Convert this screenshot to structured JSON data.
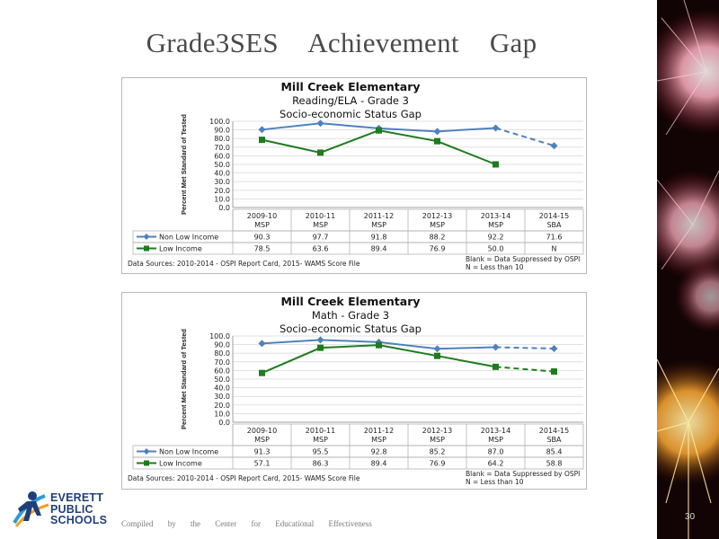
{
  "slide": {
    "title": "Grade3SES    Achievement    Gap",
    "footer": "Compiled by the Center for Educational Effectiveness",
    "page_number": "30",
    "logo": {
      "line1": "EVERETT",
      "line2": "PUBLIC",
      "line3": "SCHOOLS"
    }
  },
  "chart_data": [
    {
      "type": "line",
      "title": "Mill Creek Elementary",
      "subtitle": "Reading/ELA - Grade 3",
      "subtitle2": "Socio-economic Status Gap",
      "ylabel": "Percent Met Standard of Tested",
      "ylim": [
        0,
        100
      ],
      "yticks": [
        "100.0",
        "90.0",
        "80.0",
        "70.0",
        "60.0",
        "50.0",
        "40.0",
        "30.0",
        "20.0",
        "10.0",
        "0.0"
      ],
      "categories": [
        "2009-10",
        "2010-11",
        "2011-12",
        "2012-13",
        "2013-14",
        "2014-15"
      ],
      "category_tests": [
        "MSP",
        "MSP",
        "MSP",
        "MSP",
        "MSP",
        "SBA"
      ],
      "series": [
        {
          "name": "Non Low Income",
          "color": "#4f81bd",
          "marker": "diamond",
          "values": [
            90.3,
            97.7,
            91.8,
            88.2,
            92.2,
            71.6
          ],
          "labels": [
            "90.3",
            "97.7",
            "91.8",
            "88.2",
            "92.2",
            "71.6"
          ]
        },
        {
          "name": "Low Income",
          "color": "#1e7b1e",
          "marker": "square",
          "values": [
            78.5,
            63.6,
            89.4,
            76.9,
            50.0,
            null
          ],
          "labels": [
            "78.5",
            "63.6",
            "89.4",
            "76.9",
            "50.0",
            "N"
          ]
        }
      ],
      "source": "Data Sources: 2010-2014 - OSPI Report Card, 2015- WAMS Score File",
      "notes": [
        "Blank = Data Suppressed by OSPI",
        "N = Less than 10"
      ]
    },
    {
      "type": "line",
      "title": "Mill Creek Elementary",
      "subtitle": "Math - Grade 3",
      "subtitle2": "Socio-economic Status Gap",
      "ylabel": "Percent Met Standard of Tested",
      "ylim": [
        0,
        100
      ],
      "yticks": [
        "100.0",
        "90.0",
        "80.0",
        "70.0",
        "60.0",
        "50.0",
        "40.0",
        "30.0",
        "20.0",
        "10.0",
        "0.0"
      ],
      "categories": [
        "2009-10",
        "2010-11",
        "2011-12",
        "2012-13",
        "2013-14",
        "2014-15"
      ],
      "category_tests": [
        "MSP",
        "MSP",
        "MSP",
        "MSP",
        "MSP",
        "SBA"
      ],
      "series": [
        {
          "name": "Non Low Income",
          "color": "#4f81bd",
          "marker": "diamond",
          "values": [
            91.3,
            95.5,
            92.8,
            85.2,
            87.0,
            85.4
          ],
          "labels": [
            "91.3",
            "95.5",
            "92.8",
            "85.2",
            "87.0",
            "85.4"
          ]
        },
        {
          "name": "Low Income",
          "color": "#1e7b1e",
          "marker": "square",
          "values": [
            57.1,
            86.3,
            89.4,
            76.9,
            64.2,
            58.8
          ],
          "labels": [
            "57.1",
            "86.3",
            "89.4",
            "76.9",
            "64.2",
            "58.8"
          ]
        }
      ],
      "source": "Data Sources: 2010-2014 - OSPI Report Card, 2015- WAMS Score File",
      "notes": [
        "Blank = Data Suppressed by OSPI",
        "N = Less than 10"
      ]
    }
  ]
}
